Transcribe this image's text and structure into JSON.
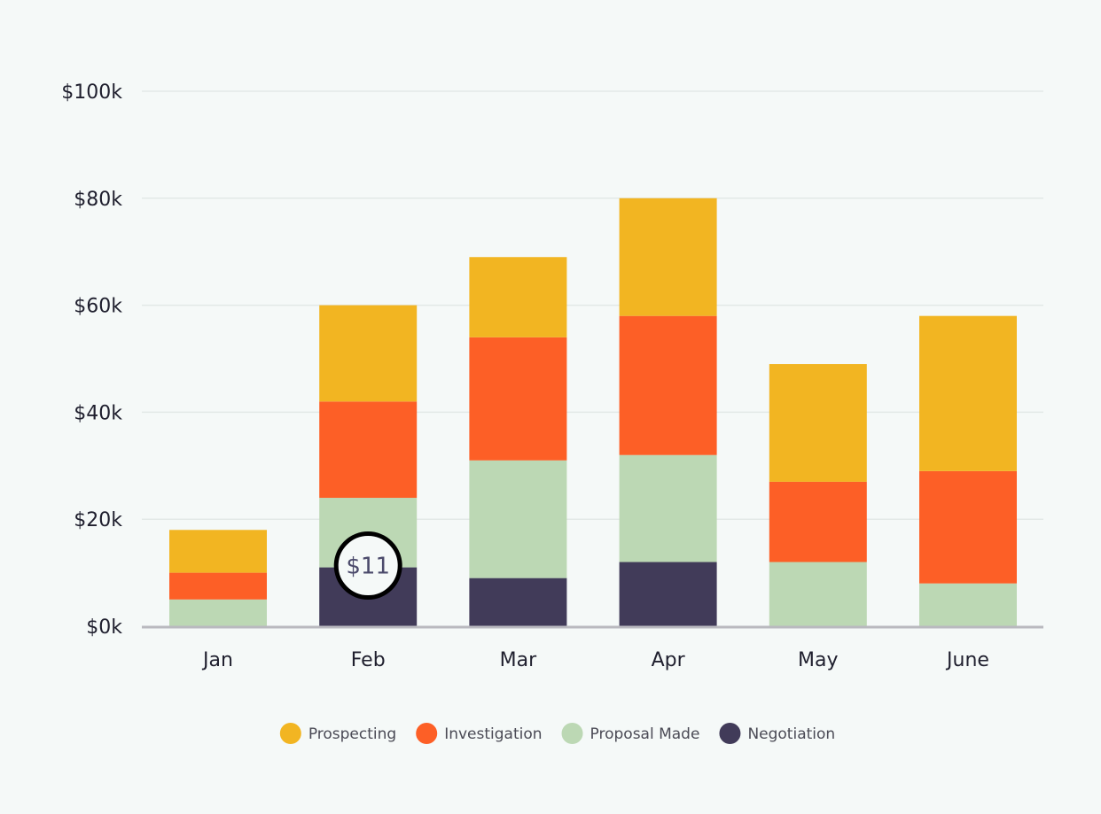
{
  "chart_data": {
    "type": "bar",
    "stacked": true,
    "categories": [
      "Jan",
      "Feb",
      "Mar",
      "Apr",
      "May",
      "June"
    ],
    "series": [
      {
        "name": "Negotiation",
        "values": [
          0,
          11,
          9,
          12,
          0,
          0
        ],
        "color": "#413b59"
      },
      {
        "name": "Proposal Made",
        "values": [
          5,
          13,
          22,
          20,
          12,
          8
        ],
        "color": "#bcd8b4"
      },
      {
        "name": "Investigation",
        "values": [
          5,
          18,
          23,
          26,
          15,
          21
        ],
        "color": "#fd5f26"
      },
      {
        "name": "Prospecting",
        "values": [
          8,
          18,
          15,
          22,
          22,
          29
        ],
        "color": "#f2b522"
      }
    ],
    "legend_order": [
      "Prospecting",
      "Investigation",
      "Proposal Made",
      "Negotiation"
    ],
    "ylim": [
      0,
      100
    ],
    "y_ticks": [
      "$0k",
      "$20k",
      "$40k",
      "$60k",
      "$80k",
      "$100k"
    ],
    "y_tick_values": [
      0,
      20,
      40,
      60,
      80,
      100
    ],
    "title": "",
    "xlabel": "",
    "ylabel": "",
    "grid": true,
    "legend_position": "bottom-center",
    "highlight": {
      "category": "Feb",
      "series": "Negotiation",
      "label": "$11"
    }
  }
}
